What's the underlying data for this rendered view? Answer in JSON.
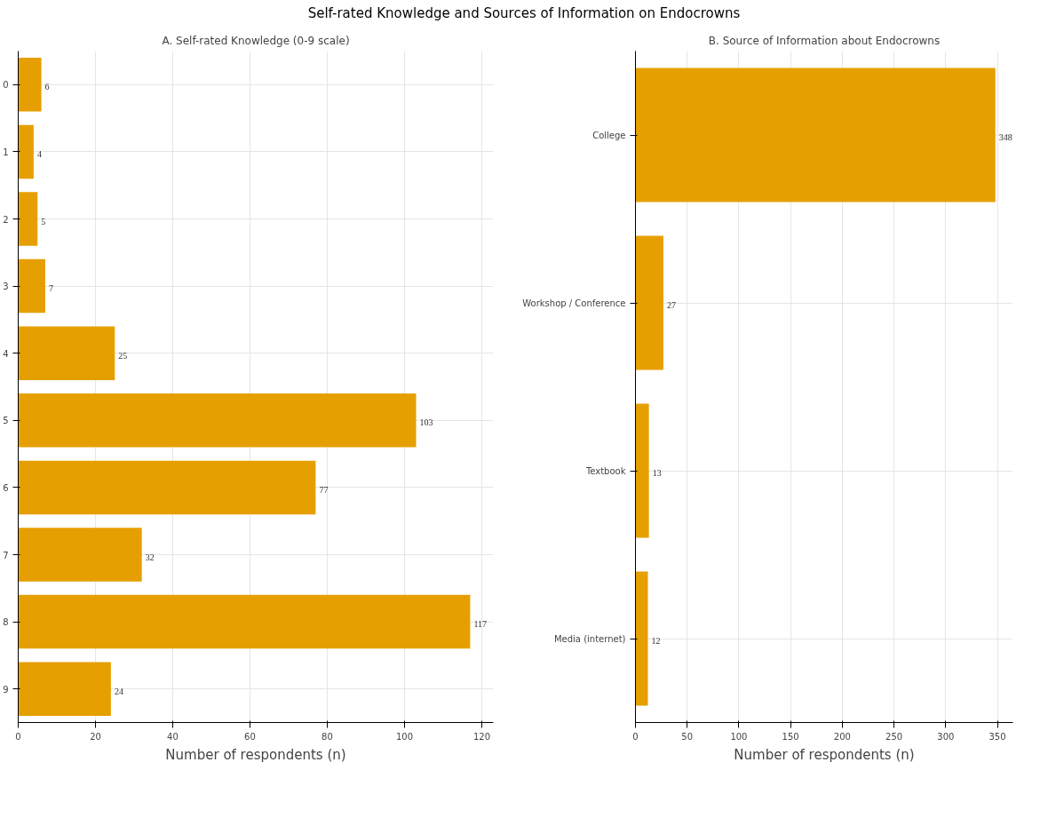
{
  "chart_data": [
    {
      "type": "bar",
      "orientation": "horizontal",
      "title": "A. Self-rated Knowledge (0-9 scale)",
      "xlabel": "Number of respondents (n)",
      "categories": [
        "0",
        "1",
        "2",
        "3",
        "4",
        "5",
        "6",
        "7",
        "8",
        "9"
      ],
      "values": [
        6,
        4,
        5,
        7,
        25,
        103,
        77,
        32,
        117,
        24
      ],
      "color": "#e69f00",
      "xlim": [
        0,
        123
      ],
      "xticks": [
        0,
        20,
        40,
        60,
        80,
        100,
        120
      ],
      "grid": true,
      "data_labels": true,
      "annotations": [
        "Self-rated Knowledge and Sources of Information on Endocrowns"
      ]
    },
    {
      "type": "bar",
      "orientation": "horizontal",
      "title": "B. Source of Information about Endocrowns",
      "xlabel": "Number of respondents (n)",
      "categories": [
        "College",
        "Workshop / Conference",
        "Textbook",
        "Media (internet)"
      ],
      "values": [
        348,
        27,
        13,
        12
      ],
      "color": "#e69f00",
      "xlim": [
        0,
        365
      ],
      "xticks": [
        0,
        50,
        100,
        150,
        200,
        250,
        300,
        350
      ],
      "grid": true,
      "data_labels": true
    }
  ]
}
